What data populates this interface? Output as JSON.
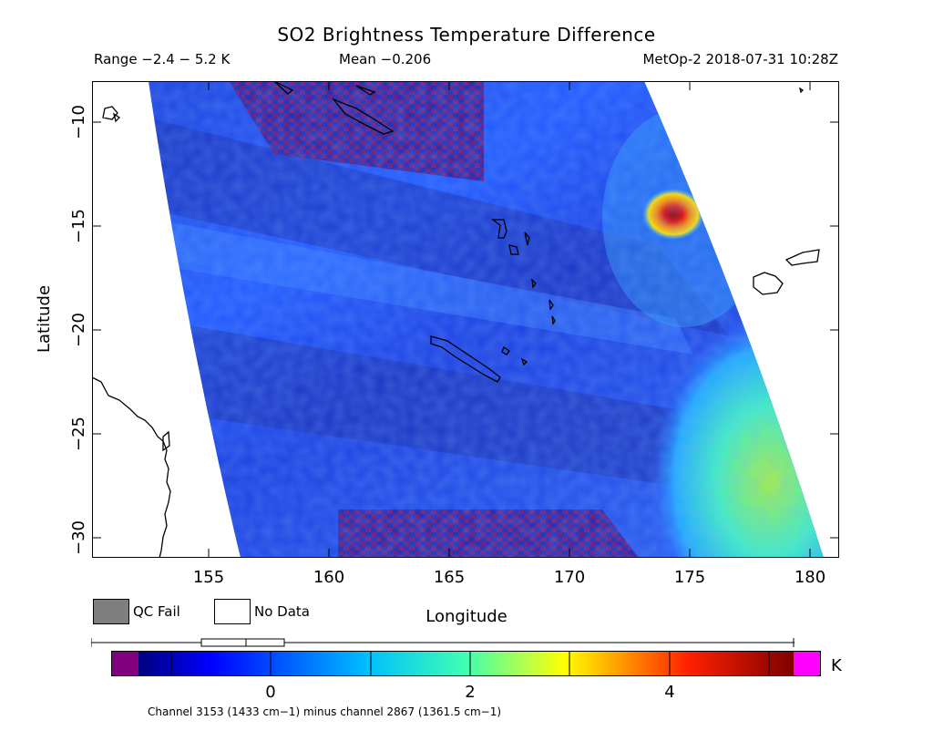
{
  "title": "SO2 Brightness Temperature Difference",
  "info": {
    "range": "Range −2.4 − 5.2 K",
    "mean": "Mean −0.206",
    "satellite": "MetOp-2 2018-07-31 10:28Z"
  },
  "map": {
    "x_axis_label": "Longitude",
    "y_axis_label": "Latitude",
    "x_ticks": [
      "155",
      "160",
      "165",
      "170",
      "175",
      "180"
    ],
    "y_ticks": [
      "−10",
      "−15",
      "−20",
      "−25",
      "−30"
    ],
    "lon_range": [
      150.3,
      180.7
    ],
    "lat_range": [
      -31.0,
      -8.0
    ]
  },
  "legend": {
    "qc_fail_label": "QC Fail",
    "no_data_label": "No Data",
    "qc_fail_color": "#7f7f7f",
    "no_data_color": "#ffffff"
  },
  "colorbar": {
    "ticks": [
      "0",
      "2",
      "4"
    ],
    "unit": "K",
    "value_range": [
      -2.4,
      5.2
    ],
    "under_color": "#800080",
    "over_color": "#ff00ff"
  },
  "channel_note": "Channel 3153 (1433 cm−1) minus channel 2867 (1361.5 cm−1)",
  "colors": {
    "background_band": "#2050ff",
    "hotspot": "#b00000",
    "so2_low": "#1a2cb0",
    "so2_high": "#9ee84a"
  }
}
